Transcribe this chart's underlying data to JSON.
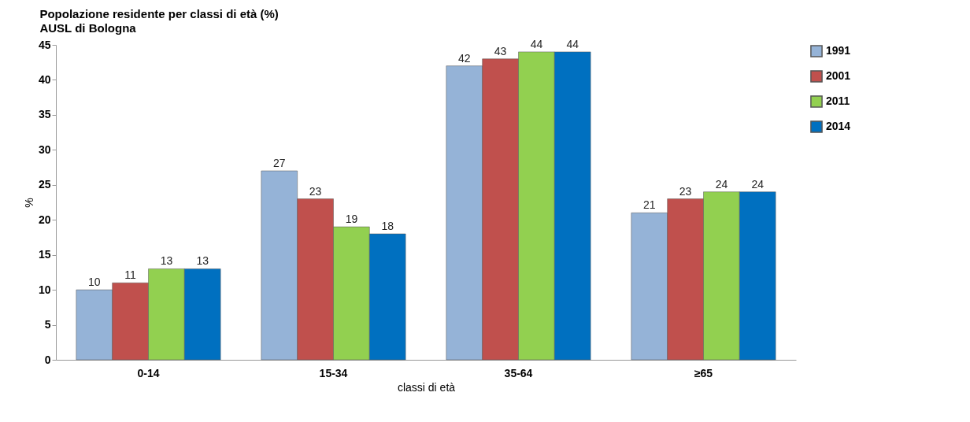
{
  "chart_data": {
    "type": "bar",
    "title": "Popolazione residente per classi di età (%)",
    "subtitle": "AUSL di Bologna",
    "xlabel": "classi di età",
    "ylabel": "%",
    "categories": [
      "0-14",
      "15-34",
      "35-64",
      "≥65"
    ],
    "series": [
      {
        "name": "1991",
        "color": "#95b3d7",
        "values": [
          10,
          27,
          42,
          21
        ]
      },
      {
        "name": "2001",
        "color": "#c0504d",
        "values": [
          11,
          23,
          43,
          23
        ]
      },
      {
        "name": "2011",
        "color": "#92d050",
        "values": [
          13,
          19,
          44,
          24
        ]
      },
      {
        "name": "2014",
        "color": "#0070c0",
        "values": [
          13,
          18,
          44,
          24
        ]
      }
    ],
    "ylim": [
      0,
      45
    ],
    "yticks": [
      0,
      5,
      10,
      15,
      20,
      25,
      30,
      35,
      40,
      45
    ],
    "grid": false,
    "legend": "right",
    "data_labels": true
  }
}
